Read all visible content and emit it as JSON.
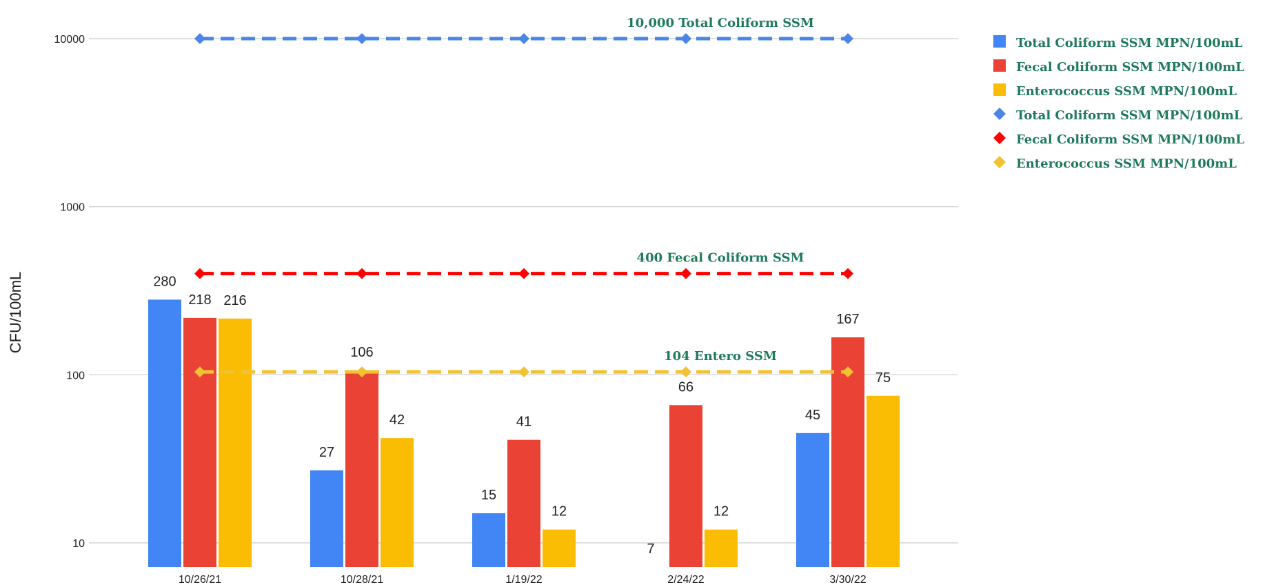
{
  "chart_data": {
    "type": "bar",
    "title": "",
    "xlabel": "",
    "ylabel": "CFU/100mL",
    "y_scale": "log",
    "ylim": [
      7,
      10000
    ],
    "y_ticks": [
      10,
      100,
      1000,
      10000
    ],
    "y_tick_labels": [
      "10",
      "100",
      "1000",
      "10000"
    ],
    "grid": true,
    "legend_position": "right",
    "categories": [
      "10/26/21",
      "10/28/21",
      "1/19/22",
      "2/24/22",
      "3/30/22"
    ],
    "series": [
      {
        "name": "Total Coliform SSM MPN/100mL",
        "kind": "bar",
        "color": "#4285f4",
        "values": [
          280,
          27,
          15,
          7,
          45
        ],
        "labels": [
          "280",
          "27",
          "15",
          "7",
          "45"
        ]
      },
      {
        "name": "Fecal Coliform SSM MPN/100mL",
        "kind": "bar",
        "color": "#ea4335",
        "values": [
          218,
          106,
          41,
          66,
          167
        ],
        "labels": [
          "218",
          "106",
          "41",
          "66",
          "167"
        ]
      },
      {
        "name": "Enterococcus SSM MPN/100mL",
        "kind": "bar",
        "color": "#fbbc04",
        "values": [
          216,
          42,
          12,
          12,
          75
        ],
        "labels": [
          "216",
          "42",
          "12",
          "12",
          "75"
        ]
      },
      {
        "name": "Total Coliform SSM MPN/100mL",
        "kind": "line",
        "color": "#4a86e8",
        "values": [
          10000,
          10000,
          10000,
          10000,
          10000
        ]
      },
      {
        "name": "Fecal Coliform SSM MPN/100mL",
        "kind": "line",
        "color": "#ff0000",
        "values": [
          400,
          400,
          400,
          400,
          400
        ]
      },
      {
        "name": "Enterococcus SSM MPN/100mL",
        "kind": "line",
        "color": "#f1c232",
        "values": [
          104,
          104,
          104,
          104,
          104
        ]
      }
    ],
    "annotations": [
      {
        "text": "10,000 Total Coliform SSM",
        "y": 10000
      },
      {
        "text": "400 Fecal Coliform SSM",
        "y": 400
      },
      {
        "text": "104 Entero SSM",
        "y": 104
      }
    ]
  }
}
